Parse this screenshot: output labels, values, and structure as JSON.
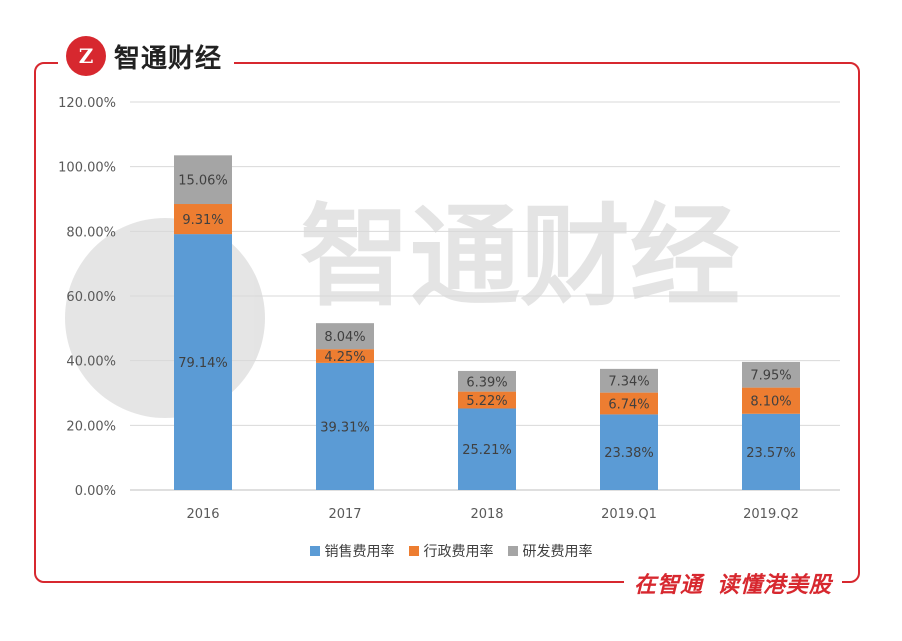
{
  "brand": {
    "logo_text": "Z",
    "name": "智通财经"
  },
  "slogan": {
    "part1": "在智通",
    "part2": "读懂港美股"
  },
  "watermark": {
    "text": "智通财经"
  },
  "chart_data": {
    "type": "bar",
    "stacked": true,
    "categories": [
      "2016",
      "2017",
      "2018",
      "2019.Q1",
      "2019.Q2"
    ],
    "series": [
      {
        "name": "销售费用率",
        "values": [
          79.14,
          39.31,
          25.21,
          23.38,
          23.57
        ],
        "labels": [
          "79.14%",
          "39.31%",
          "25.21%",
          "23.38%",
          "23.57%"
        ],
        "color": "#5b9bd5"
      },
      {
        "name": "行政费用率",
        "values": [
          9.31,
          4.25,
          5.22,
          6.74,
          8.1
        ],
        "labels": [
          "9.31%",
          "4.25%",
          "5.22%",
          "6.74%",
          "8.10%"
        ],
        "color": "#ed7d31"
      },
      {
        "name": "研发费用率",
        "values": [
          15.06,
          8.04,
          6.39,
          7.34,
          7.95
        ],
        "labels": [
          "15.06%",
          "8.04%",
          "6.39%",
          "7.34%",
          "7.95%"
        ],
        "color": "#a5a5a5"
      }
    ],
    "ylim": [
      0,
      120
    ],
    "yticks": [
      "0.00%",
      "20.00%",
      "40.00%",
      "60.00%",
      "80.00%",
      "100.00%",
      "120.00%"
    ],
    "ytick_values": [
      0,
      20,
      40,
      60,
      80,
      100,
      120
    ],
    "grid": true,
    "legend_position": "bottom"
  }
}
